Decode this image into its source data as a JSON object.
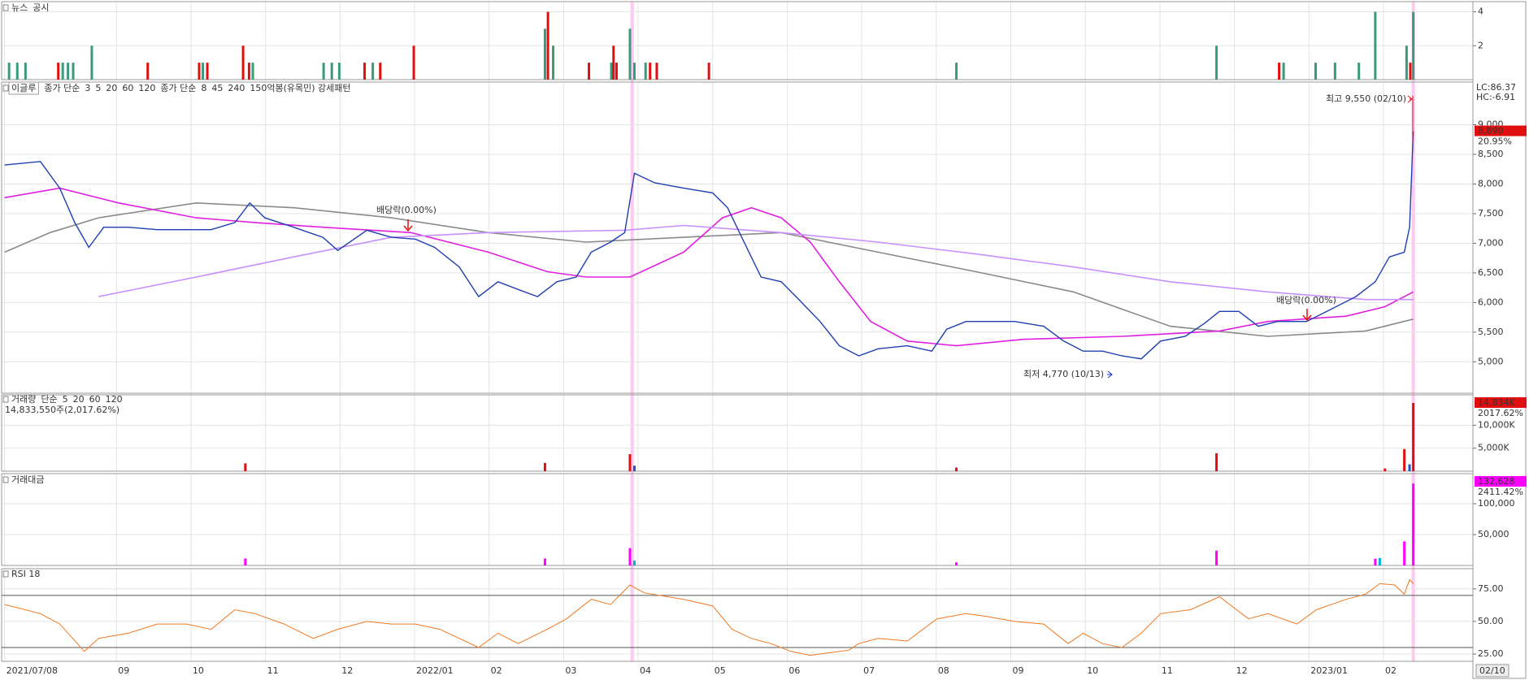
{
  "chart_data": [
    {
      "type": "bar",
      "series": [
        {
          "name": "뉴스",
          "color": "#3a9a7a",
          "x": [
            0.56,
            0.67,
            0.78,
            1.28,
            1.35,
            1.42,
            1.67,
            3.16,
            3.83,
            4.78,
            4.89,
            4.99,
            5.44,
            7.75,
            7.86,
            8.64,
            8.89,
            8.95,
            9.1,
            13.27,
            16.76,
            17.66,
            18.09,
            18.35,
            18.67,
            18.89,
            19.31,
            19.4
          ],
          "values": [
            1,
            1,
            1,
            1,
            1,
            1,
            2,
            1,
            1,
            1,
            1,
            1,
            1,
            3,
            2,
            1,
            3,
            1,
            1,
            1,
            2,
            1,
            1,
            1,
            1,
            4,
            2,
            4
          ]
        },
        {
          "name": "공시",
          "color": "#e01010",
          "x": [
            1.22,
            2.42,
            3.11,
            3.22,
            3.7,
            3.78,
            5.33,
            5.54,
            5.99,
            7.79,
            8.34,
            8.67,
            8.71,
            9.16,
            9.25,
            9.95,
            17.6,
            19.36
          ],
          "values": [
            1,
            1,
            1,
            1,
            2,
            1,
            1,
            1,
            2,
            4,
            1,
            2,
            1,
            1,
            1,
            1,
            1,
            1
          ]
        }
      ],
      "ylim": [
        0,
        4.6
      ],
      "yticks": [
        2,
        4
      ]
    },
    {
      "type": "line",
      "label": "이글루",
      "legend_groups": [
        {
          "label": "종가 단순",
          "color": "#222222",
          "items": [
            {
              "name": "3",
              "color": "#222222"
            },
            {
              "name": "5",
              "color": "#1e3cff"
            },
            {
              "name": "20",
              "color": "#e6a000"
            },
            {
              "name": "60",
              "color": "#1a9a3a"
            },
            {
              "name": "120",
              "color": "#8a8a8a",
              "x": [
                0.5,
                1.11,
                1.76,
                3.07,
                4.38,
                5.69,
                6.99,
                8.3,
                9.61,
                10.92,
                12.22,
                13.53,
                14.84,
                16.14,
                17.45,
                18.76,
                19.4
              ],
              "values": [
                6850,
                7180,
                7430,
                7680,
                7600,
                7430,
                7180,
                7020,
                7100,
                7180,
                6850,
                6520,
                6180,
                5600,
                5430,
                5520,
                5720
              ]
            }
          ]
        },
        {
          "label": "종가 단순",
          "color": "#e020a0",
          "items": [
            {
              "name": "8",
              "color": "#222222"
            },
            {
              "name": "45",
              "color": "#e020e0",
              "x": [
                0.5,
                1.24,
                2.03,
                3.07,
                3.86,
                4.77,
                5.95,
                6.99,
                7.78,
                8.3,
                8.89,
                9.61,
                10.13,
                10.52,
                10.92,
                11.31,
                11.7,
                12.12,
                12.61,
                13.27,
                14.18,
                15.49,
                16.8,
                17.45,
                18.5,
                19.02,
                19.4
              ],
              "values": [
                7770,
                7930,
                7680,
                7430,
                7350,
                7270,
                7180,
                6850,
                6520,
                6430,
                6430,
                6850,
                7430,
                7600,
                7430,
                7020,
                6350,
                5680,
                5350,
                5270,
                5380,
                5430,
                5520,
                5680,
                5770,
                5930,
                6180
              ]
            },
            {
              "name": "240",
              "color": "#c890ff",
              "x": [
                1.76,
                3.07,
                4.38,
                5.69,
                6.99,
                8.82,
                9.61,
                10.92,
                12.22,
                13.53,
                14.84,
                16.14,
                17.45,
                18.76,
                19.4
              ],
              "values": [
                6100,
                6430,
                6770,
                7100,
                7180,
                7220,
                7300,
                7180,
                7020,
                6820,
                6600,
                6350,
                6180,
                6050,
                6050
              ]
            }
          ]
        }
      ],
      "pattern_label": "150억봉(유목민) 강세패턴",
      "price": {
        "color": "#1f3fb0",
        "x": [
          0.5,
          0.98,
          1.24,
          1.44,
          1.63,
          1.83,
          2.16,
          2.55,
          2.94,
          3.27,
          3.59,
          3.79,
          3.99,
          4.38,
          4.77,
          4.97,
          5.36,
          5.69,
          6.01,
          6.27,
          6.6,
          6.86,
          7.12,
          7.39,
          7.65,
          7.91,
          8.17,
          8.37,
          8.63,
          8.82,
          8.95,
          9.22,
          9.61,
          10.0,
          10.2,
          10.39,
          10.65,
          10.92,
          11.18,
          11.44,
          11.7,
          11.96,
          12.22,
          12.61,
          12.94,
          13.14,
          13.4,
          13.66,
          14.05,
          14.44,
          14.71,
          14.97,
          15.23,
          15.49,
          15.75,
          16.01,
          16.34,
          16.6,
          16.8,
          17.06,
          17.32,
          17.58,
          17.97,
          18.24,
          18.63,
          18.89,
          19.08,
          19.28,
          19.35,
          19.4
        ],
        "values": [
          8320,
          8380,
          7930,
          7350,
          6930,
          7270,
          7270,
          7230,
          7230,
          7230,
          7350,
          7680,
          7430,
          7270,
          7100,
          6880,
          7220,
          7100,
          7070,
          6930,
          6600,
          6100,
          6350,
          6220,
          6100,
          6350,
          6430,
          6850,
          7020,
          7180,
          8180,
          8020,
          7930,
          7850,
          7600,
          7100,
          6430,
          6350,
          6020,
          5680,
          5270,
          5100,
          5220,
          5270,
          5180,
          5550,
          5680,
          5680,
          5680,
          5600,
          5350,
          5180,
          5180,
          5100,
          5050,
          5350,
          5430,
          5650,
          5850,
          5850,
          5600,
          5680,
          5680,
          5850,
          6100,
          6350,
          6770,
          6850,
          7270,
          8890
        ]
      },
      "annotations": [
        {
          "text": "최고 9,550 (02/10)",
          "color": "#e01010"
        },
        {
          "text": "최저 4,770 (10/13)",
          "color": "#1030d0"
        },
        {
          "text": "배당락(0.00%)",
          "color": "#333333"
        },
        {
          "text": "배당락(0.00%)",
          "color": "#333333"
        }
      ],
      "top_labels": [
        {
          "text": "LC:86.37",
          "color": "#e01010"
        },
        {
          "text": "HC:-6.91",
          "color": "#1030d0"
        }
      ],
      "last_label": "8,890",
      "change_label": "20.95%",
      "ylim": [
        4470,
        9720
      ],
      "yticks": [
        {
          "value": 5000,
          "label": "5,000"
        },
        {
          "value": 5500,
          "label": "5,500"
        },
        {
          "value": 6000,
          "label": "6,000"
        },
        {
          "value": 6500,
          "label": "6,500"
        },
        {
          "value": 7000,
          "label": "7,000"
        },
        {
          "value": 7500,
          "label": "7,500"
        },
        {
          "value": 8000,
          "label": "8,000"
        },
        {
          "value": 8500,
          "label": "8,500"
        },
        {
          "value": 9000,
          "label": "9,000"
        }
      ]
    },
    {
      "type": "bar",
      "label": "거래량",
      "legend_groups": [
        {
          "label": "단순",
          "color": "#e020e0",
          "items": [
            {
              "name": "5",
              "color": "#e020e0"
            },
            {
              "name": "20",
              "color": "#e6a000"
            },
            {
              "name": "60",
              "color": "#1a9a3a"
            },
            {
              "name": "120",
              "color": "#8a8a8a"
            }
          ]
        }
      ],
      "sublabel": "14,833,550주(2,017.62%)",
      "series": [
        {
          "x": [
            3.73,
            7.75,
            8.89,
            8.95,
            13.27,
            16.76,
            19.02,
            19.28,
            19.35,
            19.4
          ],
          "values": [
            1700,
            1800,
            3700,
            1200,
            800,
            3900,
            600,
            4800,
            1500,
            14833.55
          ],
          "colors": [
            "#e01010",
            "#e01010",
            "#e01010",
            "#2050d0",
            "#e01010",
            "#e01010",
            "#e01010",
            "#e01010",
            "#2050d0",
            "#e01010"
          ]
        }
      ],
      "last_label": "14,834K",
      "change_label": "2017.62%",
      "label_color": "#e01010",
      "ylim": [
        0,
        16600
      ],
      "yticks": [
        {
          "value": 5000,
          "label": "5,000K"
        },
        {
          "value": 10000,
          "label": "10,000K"
        }
      ]
    },
    {
      "type": "bar",
      "label": "거래대금",
      "series": [
        {
          "x": [
            3.73,
            7.75,
            8.89,
            8.95,
            13.27,
            16.76,
            18.89,
            18.95,
            19.28,
            19.4
          ],
          "values": [
            11300,
            11300,
            28000,
            8000,
            5000,
            24000,
            11000,
            12000,
            39000,
            132628
          ],
          "colors": [
            "#ff00ff",
            "#ff00ff",
            "#ff00ff",
            "#00b0e0",
            "#ff00ff",
            "#ff00ff",
            "#ff00ff",
            "#00b0e0",
            "#ff00ff",
            "#ff00ff"
          ]
        }
      ],
      "last_label": "132,628",
      "change_label": "2411.42%",
      "label_color": "#ff00ff",
      "ylim": [
        0,
        148700
      ],
      "yticks": [
        {
          "value": 50000,
          "label": "50,000"
        },
        {
          "value": 100000,
          "label": "100,000"
        }
      ]
    },
    {
      "type": "line",
      "label": "RSI 18",
      "series": [
        {
          "color": "#f07820",
          "x": [
            0.5,
            0.98,
            1.24,
            1.57,
            1.76,
            2.16,
            2.55,
            2.94,
            3.27,
            3.59,
            3.86,
            4.25,
            4.64,
            4.97,
            5.36,
            5.69,
            6.01,
            6.34,
            6.6,
            6.86,
            7.12,
            7.39,
            7.78,
            8.04,
            8.37,
            8.63,
            8.89,
            9.08,
            9.61,
            10.0,
            10.26,
            10.52,
            10.78,
            11.05,
            11.31,
            11.57,
            11.83,
            11.96,
            12.22,
            12.61,
            13.01,
            13.4,
            13.66,
            14.05,
            14.44,
            14.77,
            14.97,
            15.23,
            15.49,
            15.75,
            16.01,
            16.41,
            16.8,
            17.19,
            17.45,
            17.84,
            18.1,
            18.5,
            18.76,
            18.95,
            19.15,
            19.28,
            19.35,
            19.4
          ],
          "values": [
            63,
            56,
            48,
            27,
            37,
            41,
            48,
            48,
            44,
            59,
            56,
            48,
            37,
            44,
            50,
            48,
            48,
            44,
            37,
            30,
            41,
            33,
            44,
            52,
            67,
            63,
            78,
            72,
            67,
            62,
            44,
            37,
            33,
            27,
            24,
            26,
            28,
            33,
            37,
            35,
            52,
            56,
            54,
            50,
            48,
            33,
            41,
            33,
            30,
            41,
            56,
            59,
            69,
            52,
            56,
            48,
            59,
            67,
            71,
            79,
            78,
            71,
            82,
            79
          ]
        }
      ],
      "levels": [
        70,
        30
      ],
      "ylim": [
        19.4,
        90.5
      ],
      "yticks": [
        {
          "value": 25,
          "label": "25.00"
        },
        {
          "value": 50,
          "label": "50.00"
        },
        {
          "value": 75,
          "label": "75.00"
        }
      ],
      "xlim": [
        0.46,
        20.2
      ],
      "xticks": [
        {
          "value": 0.5,
          "label": "2021/07/08"
        },
        {
          "value": 2,
          "label": "09"
        },
        {
          "value": 3,
          "label": "10"
        },
        {
          "value": 4,
          "label": "11"
        },
        {
          "value": 5,
          "label": "12"
        },
        {
          "value": 6,
          "label": "2022/01"
        },
        {
          "value": 7,
          "label": "02"
        },
        {
          "value": 8,
          "label": "03"
        },
        {
          "value": 9,
          "label": "04"
        },
        {
          "value": 10,
          "label": "05"
        },
        {
          "value": 11,
          "label": "06"
        },
        {
          "value": 12,
          "label": "07"
        },
        {
          "value": 13,
          "label": "08"
        },
        {
          "value": 14,
          "label": "09"
        },
        {
          "value": 15,
          "label": "10"
        },
        {
          "value": 16,
          "label": "11"
        },
        {
          "value": 17,
          "label": "12"
        },
        {
          "value": 18,
          "label": "2023/01"
        },
        {
          "value": 19,
          "label": "02"
        }
      ],
      "cursor_label": "02/10",
      "highlights": [
        8.92,
        19.4
      ]
    }
  ]
}
